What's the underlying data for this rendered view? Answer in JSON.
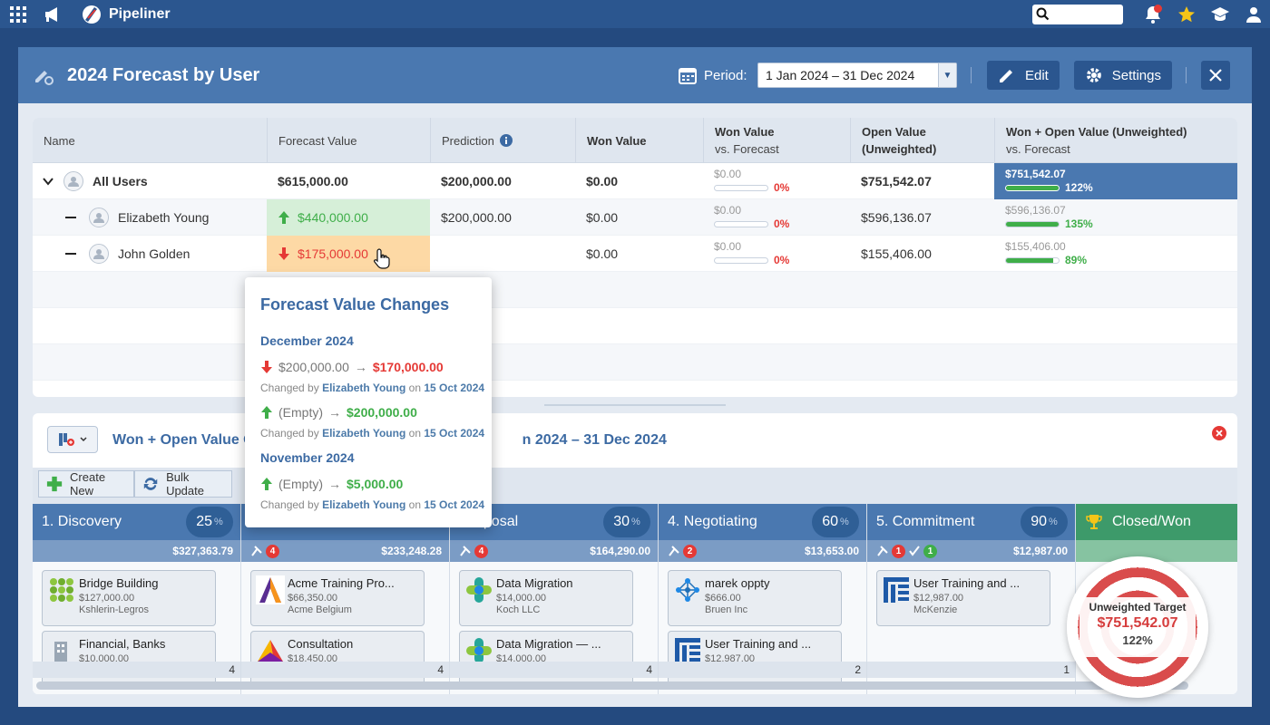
{
  "topbar": {
    "app_name": "Pipeliner"
  },
  "header": {
    "title": "2024 Forecast by User",
    "period_label": "Period:",
    "period_value": "1 Jan 2024 – 31 Dec 2024",
    "edit_label": "Edit",
    "settings_label": "Settings"
  },
  "table": {
    "columns": {
      "name": "Name",
      "forecast": "Forecast Value",
      "prediction": "Prediction",
      "won": "Won Value",
      "won_vs_1": "Won Value",
      "won_vs_2": "vs. Forecast",
      "open_1": "Open Value",
      "open_2": "(Unweighted)",
      "wo_1": "Won + Open Value (Unweighted)",
      "wo_2": "vs. Forecast"
    },
    "rows": [
      {
        "name": "All Users",
        "forecast": "$615,000.00",
        "prediction": "$200,000.00",
        "won": "$0.00",
        "won_vs_value": "$0.00",
        "won_vs_pct": "0%",
        "open": "$751,542.07",
        "wo_value": "$751,542.07",
        "wo_pct": "122%",
        "wo_fill": 1.0
      },
      {
        "name": "Elizabeth Young",
        "forecast": "$440,000.00",
        "prediction": "$200,000.00",
        "won": "$0.00",
        "won_vs_value": "$0.00",
        "won_vs_pct": "0%",
        "open": "$596,136.07",
        "wo_value": "$596,136.07",
        "wo_pct": "135%",
        "wo_fill": 1.0
      },
      {
        "name": "John Golden",
        "forecast": "$175,000.00",
        "prediction": "",
        "won": "$0.00",
        "won_vs_value": "$0.00",
        "won_vs_pct": "0%",
        "open": "$155,406.00",
        "wo_value": "$155,406.00",
        "wo_pct": "89%",
        "wo_fill": 0.89
      }
    ]
  },
  "popup": {
    "title": "Forecast Value Changes",
    "groups": [
      {
        "month": "December 2024",
        "changes": [
          {
            "from": "$200,000.00",
            "arrow": "→",
            "to": "$170,000.00",
            "prefix": "Changed by",
            "user": "Elizabeth Young",
            "on": "on",
            "date": "15 Oct 2024"
          },
          {
            "from": "(Empty)",
            "arrow": "→",
            "to": "$200,000.00",
            "prefix": "Changed by",
            "user": "Elizabeth Young",
            "on": "on",
            "date": "15 Oct 2024"
          }
        ]
      },
      {
        "month": "November 2024",
        "changes": [
          {
            "from": "(Empty)",
            "arrow": "→",
            "to": "$5,000.00",
            "prefix": "Changed by",
            "user": "Elizabeth Young",
            "on": "on",
            "date": "15 Oct 2024"
          }
        ]
      }
    ]
  },
  "pipeline": {
    "title_left": "Won + Open Value O",
    "title_right": "n 2024 – 31 Dec 2024",
    "create_new": "Create New",
    "bulk_update": "Bulk Update",
    "pct_sign": "%",
    "stages": [
      {
        "name": "1. Discovery",
        "pct": "25",
        "total": "$327,363.79",
        "badge": "",
        "count": "4",
        "cards": [
          {
            "name": "Bridge Building",
            "value": "$127,000.00",
            "account": "Kshlerin-Legros",
            "logo": "green-grid-logo"
          },
          {
            "name": "Financial, Banks",
            "value": "$10,000.00",
            "account": "",
            "logo": "building-logo"
          }
        ]
      },
      {
        "name": "",
        "pct": "",
        "total": "$233,248.28",
        "badge": "4",
        "count": "4",
        "cards": [
          {
            "name": "Acme Training Pro...",
            "value": "$66,350.00",
            "account": "Acme Belgium",
            "logo": "a-logo"
          },
          {
            "name": "Consultation",
            "value": "$18,450.00",
            "account": "",
            "logo": "prism-logo"
          }
        ]
      },
      {
        "name": "oposal",
        "pct": "30",
        "total": "$164,290.00",
        "badge": "4",
        "count": "4",
        "cards": [
          {
            "name": "Data Migration",
            "value": "$14,000.00",
            "account": "Koch LLC",
            "logo": "cross-logo"
          },
          {
            "name": "Data Migration — ...",
            "value": "$14,000.00",
            "account": "",
            "logo": "cross-logo"
          }
        ]
      },
      {
        "name": "4. Negotiating",
        "pct": "60",
        "total": "$13,653.00",
        "badge": "2",
        "count": "2",
        "cards": [
          {
            "name": "marek oppty",
            "value": "$666.00",
            "account": "Bruen Inc",
            "logo": "network-logo"
          },
          {
            "name": "User Training and ...",
            "value": "$12,987.00",
            "account": "",
            "logo": "bars-logo"
          }
        ]
      },
      {
        "name": "5. Commitment",
        "pct": "90",
        "total": "$12,987.00",
        "badge": "1",
        "badge_green": "1",
        "count": "1",
        "cards": [
          {
            "name": "User Training and ...",
            "value": "$12,987.00",
            "account": "McKenzie",
            "logo": "bars-logo"
          }
        ]
      },
      {
        "name": "Closed/Won",
        "pct": "",
        "total": "",
        "badge": "",
        "count": "",
        "cards": []
      }
    ]
  },
  "target": {
    "label": "Unweighted Target",
    "value": "$751,542.07",
    "pct": "122%"
  },
  "colors": {
    "header": "#4a78b0",
    "accent": "#2b568f",
    "up": "#3fae49",
    "down": "#e53935",
    "forecast_up_bg": "#d6efd8",
    "forecast_down_bg": "#fdd9a5"
  }
}
